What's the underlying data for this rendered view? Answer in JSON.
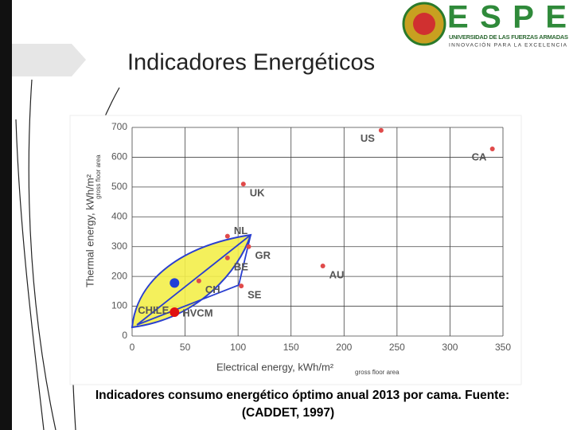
{
  "slide": {
    "title": "Indicadores Energéticos",
    "caption_lines": [
      "Indicadores consumo energético óptimo  anual 2013 por cama. Fuente:",
      "(CADDET, 1997)"
    ],
    "logo": {
      "name": "ESPE",
      "line1": "UNIVERSIDAD DE LAS FUERZAS ARMADAS",
      "line2": "INNOVACIÓN PARA LA EXCELENCIA"
    }
  },
  "chart_data": {
    "type": "scatter",
    "x_label": "Electrical energy, kWh/m²",
    "x_label_sub": "gross floor area",
    "y_label": "Thermal energy, kWh/m²",
    "y_label_sub": "gross floor area",
    "xlim": [
      0,
      350
    ],
    "xticks": [
      0,
      50,
      100,
      150,
      200,
      250,
      300,
      350
    ],
    "ylim": [
      0,
      700
    ],
    "yticks": [
      0,
      100,
      200,
      300,
      400,
      500,
      600,
      700
    ],
    "grid": true,
    "points": [
      {
        "label": "US",
        "x": 235,
        "y": 690,
        "color": "#e04a4a",
        "marker": "small"
      },
      {
        "label": "CA",
        "x": 340,
        "y": 628,
        "color": "#e04a4a",
        "marker": "small"
      },
      {
        "label": "UK",
        "x": 105,
        "y": 510,
        "color": "#e04a4a",
        "marker": "small"
      },
      {
        "label": "NL",
        "x": 90,
        "y": 335,
        "color": "#e04a4a",
        "marker": "small"
      },
      {
        "label": "GR",
        "x": 110,
        "y": 300,
        "color": "#e04a4a",
        "marker": "small"
      },
      {
        "label": "BE",
        "x": 90,
        "y": 262,
        "color": "#e04a4a",
        "marker": "small"
      },
      {
        "label": "AU",
        "x": 180,
        "y": 235,
        "color": "#e04a4a",
        "marker": "small"
      },
      {
        "label": "CH",
        "x": 63,
        "y": 185,
        "color": "#e04a4a",
        "marker": "small"
      },
      {
        "label": "SE",
        "x": 103,
        "y": 168,
        "color": "#e04a4a",
        "marker": "small"
      },
      {
        "label": "CHILE",
        "x": 40,
        "y": 178,
        "color": "#1f3fd6",
        "marker": "large"
      },
      {
        "label": "HVCM",
        "x": 40,
        "y": 80,
        "color": "#e01010",
        "marker": "large"
      }
    ]
  }
}
